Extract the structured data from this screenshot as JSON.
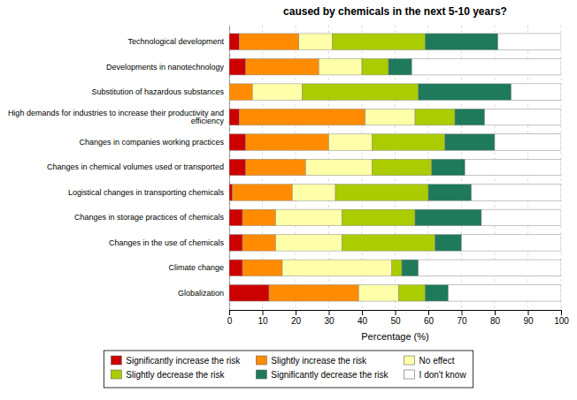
{
  "chart_data": {
    "type": "bar",
    "orientation": "horizontal",
    "stacked": true,
    "title": "caused by chemicals in the next 5-10 years?",
    "xlabel": "Percentage (%)",
    "categories": [
      "Technological development",
      "Developments in nanotechnology",
      "Substitution of hazardous substances",
      "High demands for industries to increase their productivity and\nefficiency",
      "Changes in companies working practices",
      "Changes in chemical volumes used or transported",
      "Logistical changes in transporting chemicals",
      "Changes in storage practices of chemicals",
      "Changes in the use of chemicals",
      "Climate change",
      "Globalization"
    ],
    "series": [
      {
        "name": "Significantly increase the risk",
        "color": "#cc0000",
        "values": [
          3,
          5,
          0,
          3,
          5,
          5,
          1,
          4,
          4,
          4,
          12
        ]
      },
      {
        "name": "Slightly increase the risk",
        "color": "#ff8c00",
        "values": [
          18,
          22,
          7,
          38,
          25,
          18,
          18,
          10,
          10,
          12,
          27
        ]
      },
      {
        "name": "No effect",
        "color": "#ffffaa",
        "values": [
          10,
          13,
          15,
          15,
          13,
          20,
          13,
          20,
          20,
          33,
          12
        ]
      },
      {
        "name": "Slightly decrease the risk",
        "color": "#aacc00",
        "values": [
          28,
          8,
          35,
          12,
          22,
          18,
          28,
          22,
          28,
          3,
          8
        ]
      },
      {
        "name": "Significantly decrease the risk",
        "color": "#1e7a5a",
        "values": [
          22,
          7,
          28,
          9,
          15,
          10,
          13,
          20,
          8,
          5,
          7
        ]
      },
      {
        "name": "I don't know",
        "color": "#ffffff",
        "values": [
          19,
          45,
          15,
          23,
          20,
          29,
          27,
          24,
          30,
          43,
          34
        ]
      }
    ],
    "xlim": [
      0,
      100
    ],
    "xticks": [
      0,
      10,
      20,
      30,
      40,
      50,
      60,
      70,
      80,
      90,
      100
    ],
    "grid": true,
    "legend": "bottom"
  }
}
